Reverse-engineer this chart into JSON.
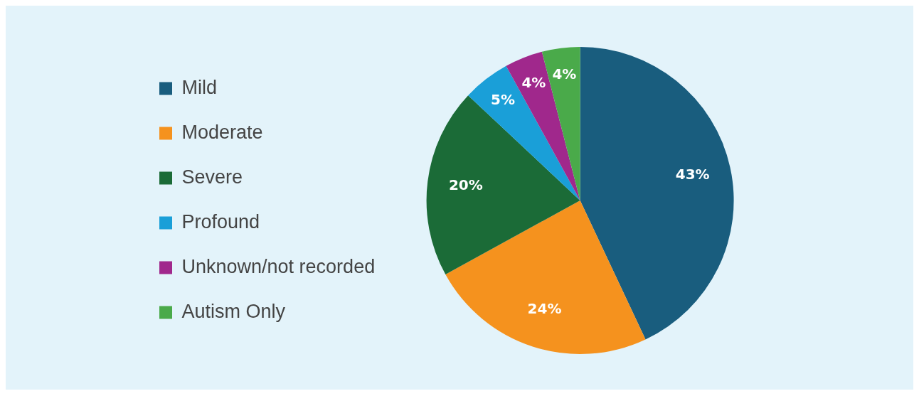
{
  "chart_data": {
    "type": "pie",
    "categories": [
      "Mild",
      "Moderate",
      "Severe",
      "Profound",
      "Unknown/not recorded",
      "Autism Only"
    ],
    "values": [
      43,
      24,
      20,
      5,
      4,
      4
    ],
    "colors": [
      "#195d7e",
      "#f5921e",
      "#1b6b37",
      "#1a9fd8",
      "#a0288c",
      "#4aaa4a"
    ],
    "value_labels": [
      "43%",
      "24%",
      "20%",
      "5%",
      "4%",
      "4%"
    ],
    "legend": "left"
  }
}
